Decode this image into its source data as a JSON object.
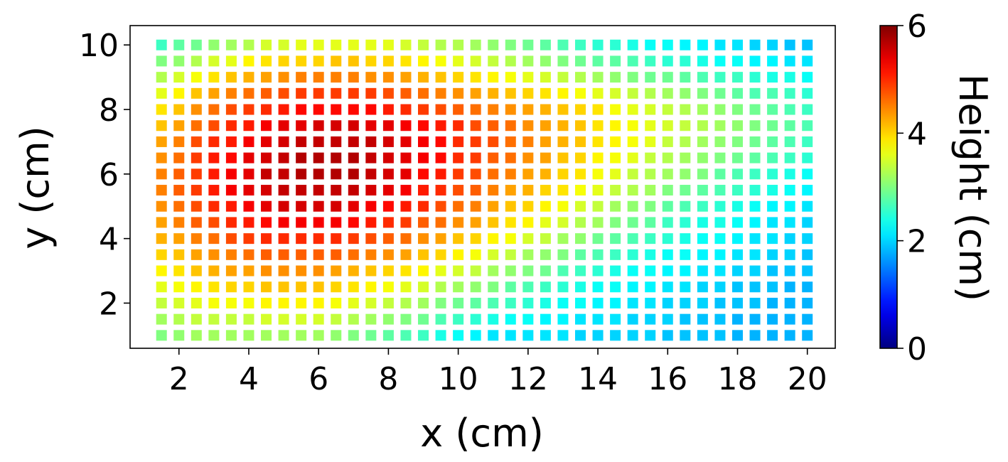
{
  "chart_data": {
    "type": "heatmap",
    "marker": "square",
    "xlabel": "x (cm)",
    "ylabel": "y (cm)",
    "colorbar": {
      "label": "Height (cm)",
      "colormap": "jet",
      "range": [
        0,
        6
      ],
      "ticks": [
        "0",
        "2",
        "4",
        "6"
      ],
      "tick_values": [
        0,
        2,
        4,
        6
      ]
    },
    "x_ticks": [
      "2",
      "4",
      "6",
      "8",
      "10",
      "12",
      "14",
      "16",
      "18",
      "20"
    ],
    "x_tick_values": [
      2,
      4,
      6,
      8,
      10,
      12,
      14,
      16,
      18,
      20
    ],
    "y_ticks": [
      "2",
      "4",
      "6",
      "8",
      "10"
    ],
    "y_tick_values": [
      2,
      4,
      6,
      8,
      10
    ],
    "xlim": [
      0.6,
      20.8
    ],
    "ylim": [
      0.6,
      10.6
    ],
    "grid": false,
    "x": [
      1.5,
      2.0,
      2.5,
      3.0,
      3.5,
      4.0,
      4.5,
      5.0,
      5.5,
      6.0,
      6.5,
      7.0,
      7.5,
      8.0,
      8.5,
      9.0,
      9.5,
      10.0,
      10.5,
      11.0,
      11.5,
      12.0,
      12.5,
      13.0,
      13.5,
      14.0,
      14.5,
      15.0,
      15.5,
      16.0,
      16.5,
      17.0,
      17.5,
      18.0,
      18.5,
      19.0,
      19.5,
      20.0
    ],
    "y": [
      1.0,
      1.5,
      2.0,
      2.5,
      3.0,
      3.5,
      4.0,
      4.5,
      5.0,
      5.5,
      6.0,
      6.5,
      7.0,
      7.5,
      8.0,
      8.5,
      9.0,
      9.5,
      10.0
    ],
    "z_rows": [
      [
        3.0,
        3.1,
        3.2,
        3.2,
        3.2,
        3.2,
        3.2,
        3.2,
        3.2,
        3.2,
        3.1,
        3.0,
        2.9,
        2.8,
        2.7,
        2.6,
        2.4,
        2.3,
        2.2,
        2.1,
        2.1,
        2.1,
        2.1,
        2.1,
        2.0,
        2.0,
        2.0,
        2.0,
        2.0,
        1.9,
        1.9,
        1.9,
        1.9,
        1.8,
        1.8,
        1.8,
        1.8,
        1.8
      ],
      [
        3.2,
        3.3,
        3.4,
        3.4,
        3.4,
        3.4,
        3.5,
        3.5,
        3.5,
        3.5,
        3.4,
        3.3,
        3.2,
        3.1,
        3.0,
        2.9,
        2.7,
        2.6,
        2.5,
        2.4,
        2.3,
        2.3,
        2.2,
        2.2,
        2.1,
        2.1,
        2.1,
        2.0,
        2.0,
        2.0,
        1.9,
        1.9,
        1.9,
        1.8,
        1.8,
        1.8,
        1.8,
        1.8
      ],
      [
        3.4,
        3.5,
        3.6,
        3.7,
        3.7,
        3.7,
        3.8,
        3.8,
        3.8,
        3.8,
        3.7,
        3.6,
        3.5,
        3.4,
        3.3,
        3.2,
        3.0,
        2.9,
        2.8,
        2.7,
        2.6,
        2.5,
        2.4,
        2.3,
        2.3,
        2.2,
        2.2,
        2.1,
        2.1,
        2.0,
        2.0,
        2.0,
        1.9,
        1.9,
        1.9,
        1.8,
        1.8,
        1.8
      ],
      [
        3.6,
        3.7,
        3.8,
        3.9,
        4.0,
        4.0,
        4.1,
        4.1,
        4.1,
        4.1,
        4.0,
        3.9,
        3.8,
        3.7,
        3.6,
        3.5,
        3.3,
        3.2,
        3.1,
        3.0,
        2.8,
        2.7,
        2.6,
        2.5,
        2.4,
        2.3,
        2.3,
        2.2,
        2.2,
        2.1,
        2.1,
        2.0,
        2.0,
        1.9,
        1.9,
        1.9,
        1.8,
        1.8
      ],
      [
        3.8,
        3.9,
        4.1,
        4.2,
        4.3,
        4.3,
        4.4,
        4.4,
        4.4,
        4.4,
        4.3,
        4.2,
        4.1,
        4.0,
        3.9,
        3.8,
        3.6,
        3.5,
        3.4,
        3.2,
        3.1,
        3.0,
        2.9,
        2.7,
        2.6,
        2.5,
        2.4,
        2.3,
        2.3,
        2.2,
        2.2,
        2.1,
        2.1,
        2.0,
        2.0,
        1.9,
        1.9,
        1.9
      ],
      [
        4.0,
        4.1,
        4.3,
        4.4,
        4.5,
        4.6,
        4.7,
        4.7,
        4.7,
        4.7,
        4.7,
        4.6,
        4.5,
        4.4,
        4.3,
        4.1,
        4.0,
        3.8,
        3.7,
        3.5,
        3.4,
        3.2,
        3.1,
        3.0,
        2.8,
        2.7,
        2.6,
        2.5,
        2.4,
        2.3,
        2.3,
        2.2,
        2.2,
        2.1,
        2.1,
        2.0,
        2.0,
        1.9
      ],
      [
        4.2,
        4.3,
        4.5,
        4.6,
        4.8,
        4.9,
        5.0,
        5.0,
        5.0,
        5.0,
        5.0,
        4.9,
        4.8,
        4.7,
        4.6,
        4.4,
        4.3,
        4.1,
        4.0,
        3.8,
        3.7,
        3.5,
        3.4,
        3.2,
        3.1,
        2.9,
        2.8,
        2.7,
        2.6,
        2.5,
        2.4,
        2.3,
        2.3,
        2.2,
        2.1,
        2.1,
        2.0,
        2.0
      ],
      [
        4.3,
        4.5,
        4.7,
        4.8,
        5.0,
        5.1,
        5.2,
        5.3,
        5.3,
        5.3,
        5.3,
        5.2,
        5.1,
        5.0,
        4.9,
        4.7,
        4.6,
        4.4,
        4.3,
        4.1,
        3.9,
        3.8,
        3.6,
        3.5,
        3.3,
        3.2,
        3.0,
        2.9,
        2.8,
        2.6,
        2.5,
        2.4,
        2.4,
        2.3,
        2.2,
        2.1,
        2.1,
        2.0
      ],
      [
        4.4,
        4.6,
        4.8,
        5.0,
        5.1,
        5.3,
        5.4,
        5.5,
        5.5,
        5.5,
        5.5,
        5.4,
        5.3,
        5.2,
        5.1,
        5.0,
        4.8,
        4.6,
        4.5,
        4.3,
        4.1,
        4.0,
        3.8,
        3.7,
        3.5,
        3.4,
        3.2,
        3.1,
        3.0,
        2.8,
        2.7,
        2.6,
        2.5,
        2.4,
        2.3,
        2.2,
        2.2,
        2.1
      ],
      [
        4.5,
        4.7,
        4.9,
        5.1,
        5.3,
        5.4,
        5.5,
        5.6,
        5.6,
        5.6,
        5.6,
        5.6,
        5.5,
        5.4,
        5.3,
        5.1,
        5.0,
        4.8,
        4.7,
        4.5,
        4.3,
        4.2,
        4.0,
        3.9,
        3.7,
        3.6,
        3.4,
        3.3,
        3.2,
        3.0,
        2.9,
        2.8,
        2.7,
        2.6,
        2.5,
        2.4,
        2.3,
        2.2
      ],
      [
        4.5,
        4.7,
        4.9,
        5.1,
        5.3,
        5.4,
        5.6,
        5.6,
        5.7,
        5.7,
        5.7,
        5.7,
        5.6,
        5.5,
        5.4,
        5.2,
        5.1,
        4.9,
        4.8,
        4.6,
        4.5,
        4.3,
        4.2,
        4.0,
        3.9,
        3.7,
        3.6,
        3.4,
        3.3,
        3.2,
        3.1,
        3.0,
        2.8,
        2.7,
        2.6,
        2.5,
        2.4,
        2.3
      ],
      [
        4.4,
        4.6,
        4.9,
        5.1,
        5.2,
        5.4,
        5.5,
        5.6,
        5.7,
        5.7,
        5.7,
        5.7,
        5.6,
        5.5,
        5.4,
        5.3,
        5.2,
        5.0,
        4.9,
        4.7,
        4.6,
        4.4,
        4.3,
        4.1,
        4.0,
        3.8,
        3.7,
        3.6,
        3.4,
        3.3,
        3.2,
        3.1,
        3.0,
        2.9,
        2.8,
        2.7,
        2.6,
        2.5
      ],
      [
        4.3,
        4.5,
        4.8,
        5.0,
        5.1,
        5.3,
        5.4,
        5.5,
        5.6,
        5.6,
        5.6,
        5.6,
        5.6,
        5.5,
        5.4,
        5.3,
        5.2,
        5.0,
        4.9,
        4.8,
        4.6,
        4.5,
        4.3,
        4.2,
        4.1,
        3.9,
        3.8,
        3.7,
        3.6,
        3.4,
        3.3,
        3.2,
        3.1,
        3.0,
        2.9,
        2.8,
        2.7,
        2.6
      ],
      [
        4.1,
        4.3,
        4.6,
        4.8,
        5.0,
        5.1,
        5.3,
        5.4,
        5.4,
        5.5,
        5.5,
        5.5,
        5.4,
        5.4,
        5.3,
        5.2,
        5.1,
        5.0,
        4.8,
        4.7,
        4.6,
        4.4,
        4.3,
        4.2,
        4.1,
        3.9,
        3.8,
        3.7,
        3.6,
        3.5,
        3.4,
        3.3,
        3.2,
        3.1,
        3.0,
        2.9,
        2.8,
        2.7
      ],
      [
        3.9,
        4.1,
        4.4,
        4.6,
        4.8,
        4.9,
        5.0,
        5.1,
        5.2,
        5.2,
        5.2,
        5.2,
        5.2,
        5.1,
        5.0,
        4.9,
        4.8,
        4.7,
        4.6,
        4.5,
        4.4,
        4.3,
        4.2,
        4.1,
        4.0,
        3.9,
        3.7,
        3.6,
        3.5,
        3.4,
        3.3,
        3.2,
        3.1,
        3.0,
        2.9,
        2.8,
        2.7,
        2.6
      ],
      [
        3.6,
        3.8,
        4.1,
        4.3,
        4.5,
        4.6,
        4.7,
        4.8,
        4.9,
        4.9,
        4.9,
        4.9,
        4.9,
        4.8,
        4.7,
        4.6,
        4.5,
        4.4,
        4.3,
        4.2,
        4.1,
        4.0,
        3.9,
        3.8,
        3.7,
        3.6,
        3.5,
        3.4,
        3.3,
        3.2,
        3.1,
        3.0,
        2.9,
        2.8,
        2.7,
        2.7,
        2.6,
        2.5
      ],
      [
        3.3,
        3.5,
        3.7,
        3.9,
        4.1,
        4.2,
        4.3,
        4.4,
        4.5,
        4.5,
        4.5,
        4.5,
        4.4,
        4.4,
        4.3,
        4.2,
        4.1,
        4.0,
        3.9,
        3.8,
        3.7,
        3.6,
        3.5,
        3.4,
        3.3,
        3.2,
        3.1,
        3.0,
        2.9,
        2.9,
        2.8,
        2.7,
        2.6,
        2.6,
        2.5,
        2.4,
        2.4,
        2.3
      ],
      [
        3.0,
        3.1,
        3.3,
        3.5,
        3.6,
        3.8,
        3.9,
        4.0,
        4.0,
        4.0,
        4.1,
        4.1,
        4.0,
        4.0,
        3.9,
        3.8,
        3.7,
        3.6,
        3.5,
        3.4,
        3.3,
        3.2,
        3.1,
        3.0,
        2.9,
        2.8,
        2.8,
        2.7,
        2.6,
        2.5,
        2.5,
        2.4,
        2.3,
        2.3,
        2.2,
        2.2,
        2.1,
        2.1
      ],
      [
        2.6,
        2.8,
        2.9,
        3.1,
        3.2,
        3.3,
        3.5,
        3.5,
        3.6,
        3.6,
        3.6,
        3.6,
        3.6,
        3.6,
        3.5,
        3.4,
        3.3,
        3.3,
        3.2,
        3.1,
        3.0,
        2.9,
        2.8,
        2.7,
        2.6,
        2.5,
        2.5,
        2.4,
        2.3,
        2.3,
        2.2,
        2.2,
        2.1,
        2.1,
        2.0,
        2.0,
        1.9,
        1.9
      ]
    ]
  }
}
